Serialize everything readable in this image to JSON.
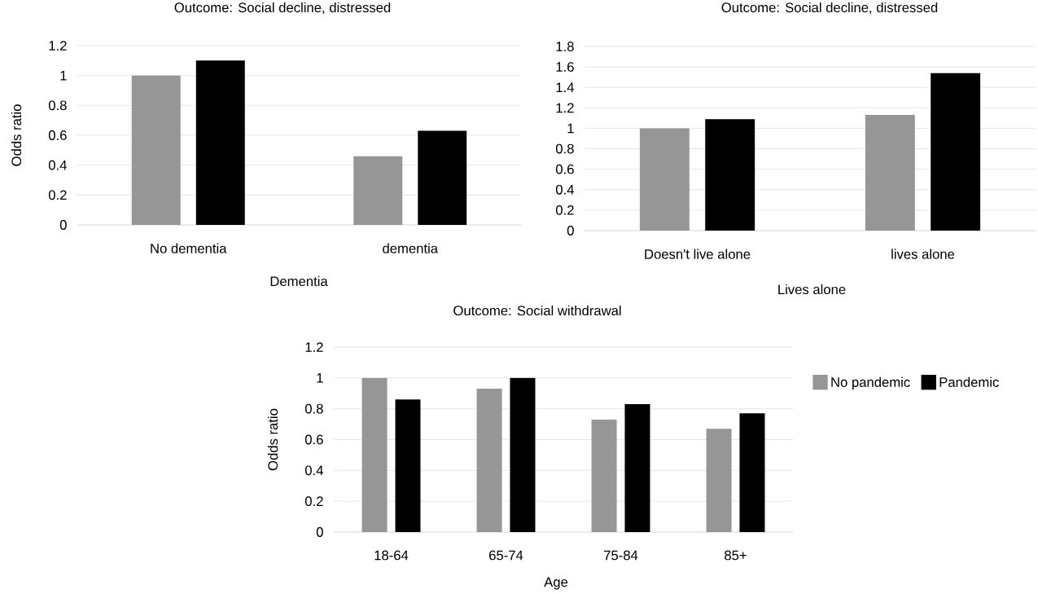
{
  "chart_data": [
    {
      "type": "bar",
      "title": "Outcome: Social decline, distressed",
      "xlabel": "Dementia",
      "ylabel": "Odds ratio",
      "categories": [
        "No dementia",
        "dementia"
      ],
      "series": [
        {
          "color": "#969696",
          "values": [
            1.0,
            0.46
          ]
        },
        {
          "color": "#000000",
          "values": [
            1.1,
            0.63
          ]
        }
      ],
      "ylim": [
        0,
        1.2
      ],
      "yticks": [
        0,
        0.2,
        0.4,
        0.6,
        0.8,
        1,
        1.2
      ],
      "grid": "y"
    },
    {
      "type": "bar",
      "title": "Outcome: Social decline, distressed",
      "xlabel": "Lives alone",
      "categories": [
        "Doesn't live alone",
        "lives alone"
      ],
      "series": [
        {
          "color": "#969696",
          "values": [
            1.0,
            1.13
          ]
        },
        {
          "color": "#000000",
          "values": [
            1.09,
            1.54
          ]
        }
      ],
      "ylim": [
        0,
        1.8
      ],
      "yticks": [
        0,
        0.2,
        0.4,
        0.6,
        0.8,
        1,
        1.2,
        1.4,
        1.6,
        1.8
      ],
      "grid": "y"
    },
    {
      "type": "bar",
      "title": "Outcome: Social withdrawal",
      "xlabel": "Age",
      "ylabel": "Odds ratio",
      "categories": [
        "18-64",
        "65-74",
        "75-84",
        "85+"
      ],
      "series": [
        {
          "name": "No pandemic",
          "color": "#969696",
          "values": [
            1.0,
            0.93,
            0.73,
            0.67
          ]
        },
        {
          "name": "Pandemic",
          "color": "#000000",
          "values": [
            0.86,
            1.0,
            0.83,
            0.77
          ]
        }
      ],
      "ylim": [
        0,
        1.2
      ],
      "yticks": [
        0,
        0.2,
        0.4,
        0.6,
        0.8,
        1,
        1.2
      ],
      "grid": "y",
      "legend": "right"
    }
  ]
}
